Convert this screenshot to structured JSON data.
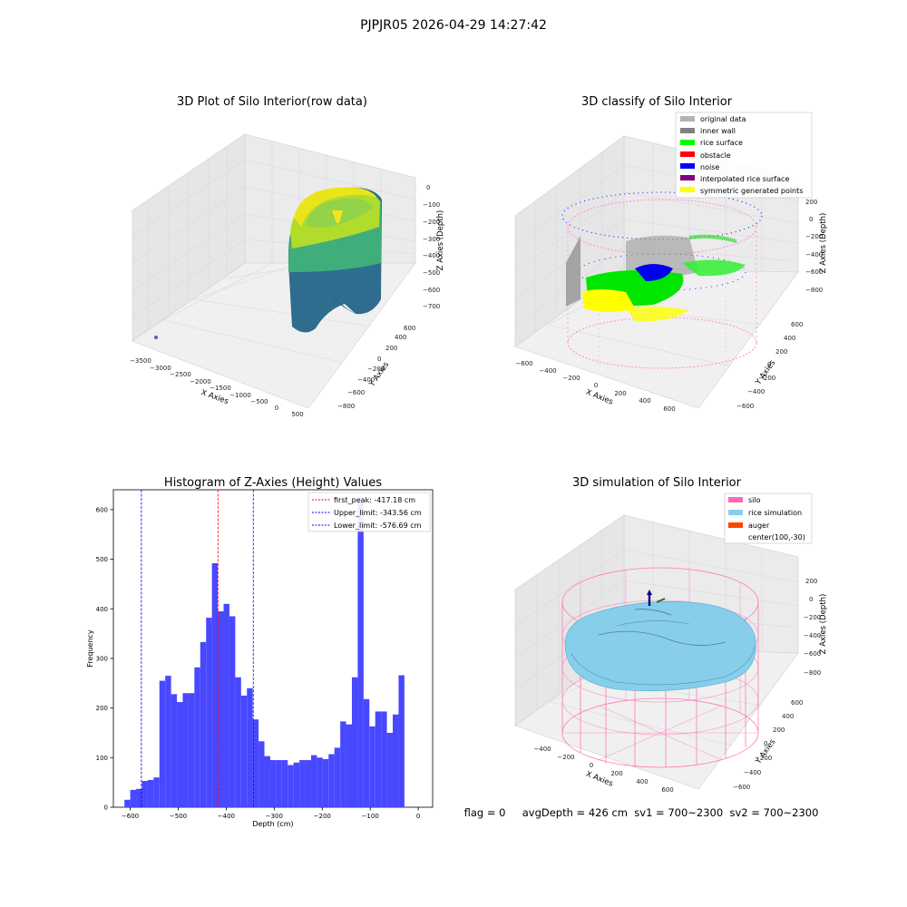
{
  "figure": {
    "suptitle": "PJPJR05 2026-04-29 14:27:42",
    "footer_text": "flag = 0     avgDepth = 426 cm  sv1 = 700~2300  sv2 = 700~2300"
  },
  "chart_data": [
    {
      "type": "scatter",
      "title": "3D Plot of Silo Interior(row data)",
      "xlabel": "X Axies",
      "ylabel": "Y Axies",
      "zlabel": "Z Axies (Depth)",
      "x_ticks": [
        "−3500",
        "−3000",
        "−2500",
        "−2000",
        "−1500",
        "−1000",
        "−500",
        "0",
        "500"
      ],
      "y_ticks": [
        "−800",
        "−600",
        "−400",
        "−200",
        "0",
        "200",
        "400",
        "600"
      ],
      "z_ticks": [
        "0",
        "−100",
        "−200",
        "−300",
        "−400",
        "−500",
        "−600",
        "−700"
      ],
      "colormap": "viridis"
    },
    {
      "type": "scatter",
      "title": "3D classify of Silo Interior",
      "xlabel": "X Axies",
      "ylabel": "Y Axies",
      "zlabel": "Z Axies (Depth)",
      "x_ticks": [
        "−600",
        "−400",
        "−200",
        "0",
        "200",
        "400",
        "600"
      ],
      "y_ticks": [
        "−600",
        "−400",
        "−200",
        "0",
        "200",
        "400",
        "600"
      ],
      "z_ticks": [
        "200",
        "0",
        "−200",
        "−400",
        "−600",
        "−800"
      ],
      "legend": [
        {
          "label": "original data",
          "color": "#b3b3b3"
        },
        {
          "label": "inner wall",
          "color": "#808080"
        },
        {
          "label": "rice surface",
          "color": "#00ff00"
        },
        {
          "label": "obstacle",
          "color": "#ff0000"
        },
        {
          "label": "noise",
          "color": "#0000ff"
        },
        {
          "label": "interpolated rice surface",
          "color": "#800080"
        },
        {
          "label": "symmetric generated points",
          "color": "#ffff00"
        }
      ]
    },
    {
      "type": "bar",
      "title": "Histogram of Z-Axies (Height) Values",
      "xlabel": "Depth (cm)",
      "ylabel": "Frequency",
      "xlim": [
        -635,
        30
      ],
      "ylim": [
        0,
        640
      ],
      "x_ticks": [
        {
          "v": -600,
          "label": "−600"
        },
        {
          "v": -500,
          "label": "−500"
        },
        {
          "v": -400,
          "label": "−400"
        },
        {
          "v": -300,
          "label": "−300"
        },
        {
          "v": -200,
          "label": "−200"
        },
        {
          "v": -100,
          "label": "−100"
        },
        {
          "v": 0,
          "label": "0"
        }
      ],
      "y_ticks": [
        {
          "v": 0,
          "label": "0"
        },
        {
          "v": 100,
          "label": "100"
        },
        {
          "v": 200,
          "label": "200"
        },
        {
          "v": 300,
          "label": "300"
        },
        {
          "v": 400,
          "label": "400"
        },
        {
          "v": 500,
          "label": "500"
        },
        {
          "v": 600,
          "label": "600"
        }
      ],
      "bin_start": -612,
      "bin_width": 12.15,
      "values": [
        15,
        35,
        37,
        53,
        55,
        60,
        255,
        265,
        228,
        212,
        230,
        230,
        282,
        333,
        382,
        492,
        395,
        410,
        385,
        262,
        225,
        240,
        177,
        133,
        103,
        95,
        95,
        95,
        85,
        90,
        95,
        95,
        105,
        100,
        97,
        107,
        120,
        173,
        167,
        262,
        615,
        218,
        163,
        193,
        193,
        150,
        187,
        266
      ],
      "bar_color": "#4848ff",
      "lines": [
        {
          "x": -417.18,
          "color": "#ff0000",
          "label": "first_peak: -417.18 cm"
        },
        {
          "x": -343.56,
          "color": "#0000ff",
          "label": "Upper_limit: -343.56 cm"
        },
        {
          "x": -576.69,
          "color": "#0000ff",
          "label": "Lower_limit: -576.69 cm"
        }
      ],
      "legend_position": "top-right"
    },
    {
      "type": "scatter",
      "title": "3D simulation of Silo Interior",
      "xlabel": "X Axies",
      "ylabel": "Y Axies",
      "zlabel": "Z Axies (Depth)",
      "x_ticks": [
        "−400",
        "−200",
        "0",
        "200",
        "400",
        "600"
      ],
      "y_ticks": [
        "−600",
        "−400",
        "−200",
        "0",
        "200",
        "400",
        "600"
      ],
      "z_ticks": [
        "200",
        "0",
        "−200",
        "−400",
        "−600",
        "−800"
      ],
      "legend": [
        {
          "label": "silo",
          "color": "#ff69b4"
        },
        {
          "label": "rice simulation",
          "color": "#87ceeb"
        },
        {
          "label": "auger",
          "color": "#ff4500"
        },
        {
          "label": "center(100,-30)",
          "color": ""
        }
      ]
    }
  ]
}
